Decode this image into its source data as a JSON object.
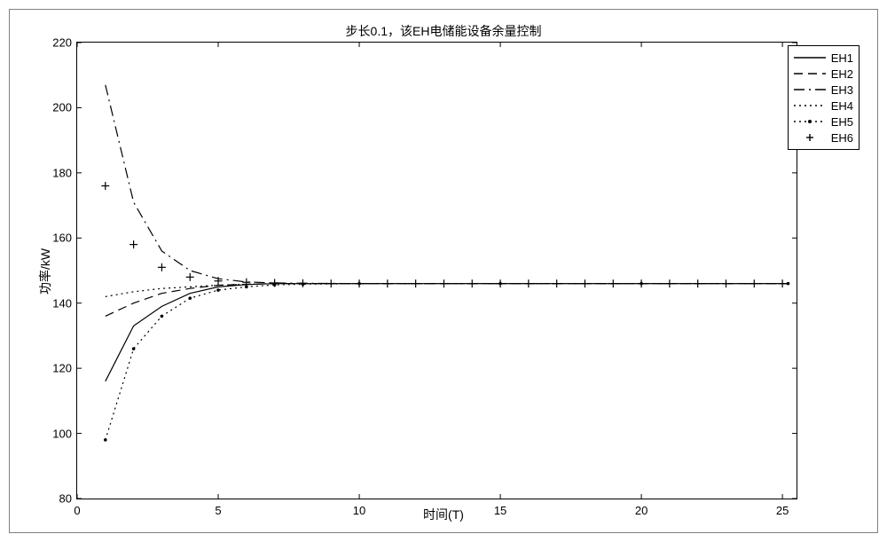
{
  "chart": {
    "type": "line",
    "title": "步长0.1，该EH电储能设备余量控制",
    "title_fontsize": 14,
    "xlabel": "时间(T)",
    "ylabel": "功率/kW",
    "label_fontsize": 14,
    "tick_fontsize": 13,
    "background_color": "#ffffff",
    "grid_on": false,
    "line_color": "#000000",
    "axis_color": "#000000",
    "outer_border_color": "#808080",
    "line_width": 1.2,
    "xlim": [
      0,
      25.5
    ],
    "ylim": [
      80,
      220
    ],
    "xticks": [
      0,
      5,
      10,
      15,
      20,
      25
    ],
    "yticks": [
      80,
      100,
      120,
      140,
      160,
      180,
      200,
      220
    ],
    "convergence_value": 146,
    "series": [
      {
        "name": "EH1",
        "label": "EH1",
        "style": "solid",
        "x": [
          1,
          2,
          3,
          4,
          5,
          6,
          7,
          8,
          10,
          15,
          20,
          25.2
        ],
        "y": [
          116,
          133,
          139,
          143,
          145,
          145.7,
          146,
          146,
          146,
          146,
          146,
          146
        ]
      },
      {
        "name": "EH2",
        "label": "EH2",
        "style": "dashed",
        "x": [
          1,
          2,
          3,
          4,
          5,
          6,
          7,
          8,
          10,
          15,
          20,
          25.2
        ],
        "y": [
          136,
          140,
          143,
          144.5,
          145.5,
          145.8,
          146,
          146,
          146,
          146,
          146,
          146
        ]
      },
      {
        "name": "EH3",
        "label": "EH3",
        "style": "dashdot",
        "x": [
          1,
          2,
          3,
          4,
          5,
          6,
          7,
          8,
          10,
          15,
          20,
          25.2
        ],
        "y": [
          207,
          171,
          156,
          150,
          147.5,
          146.5,
          146.2,
          146.1,
          146,
          146,
          146,
          146
        ]
      },
      {
        "name": "EH4",
        "label": "EH4",
        "style": "dotted",
        "x": [
          1,
          2,
          3,
          4,
          5,
          6,
          7,
          8,
          10,
          15,
          20,
          25.2
        ],
        "y": [
          142,
          143.5,
          144.5,
          145.0,
          145.5,
          145.8,
          146,
          146,
          146,
          146,
          146,
          146
        ]
      },
      {
        "name": "EH5",
        "label": "EH5",
        "style": "dotted-marker",
        "marker": "point",
        "x": [
          1,
          2,
          3,
          4,
          5,
          6,
          7,
          8,
          10,
          15,
          20,
          25.2
        ],
        "y": [
          98,
          126,
          136,
          141.5,
          144,
          145,
          145.6,
          145.8,
          146,
          146,
          146,
          146
        ]
      },
      {
        "name": "EH6",
        "label": "EH6",
        "style": "marker-only",
        "marker": "plus",
        "x": [
          1,
          2,
          3,
          4,
          5,
          6,
          7,
          8,
          9,
          10,
          11,
          12,
          13,
          14,
          15,
          16,
          17,
          18,
          19,
          20,
          21,
          22,
          23,
          24,
          25
        ],
        "y": [
          176,
          158,
          151,
          148,
          146.8,
          146.4,
          146.2,
          146.1,
          146,
          146,
          146,
          146,
          146,
          146,
          146,
          146,
          146,
          146,
          146,
          146,
          146,
          146,
          146,
          146,
          146
        ]
      }
    ],
    "legend": {
      "position": "top-right",
      "border_color": "#000000",
      "bg_color": "#ffffff",
      "fontsize": 13
    }
  }
}
